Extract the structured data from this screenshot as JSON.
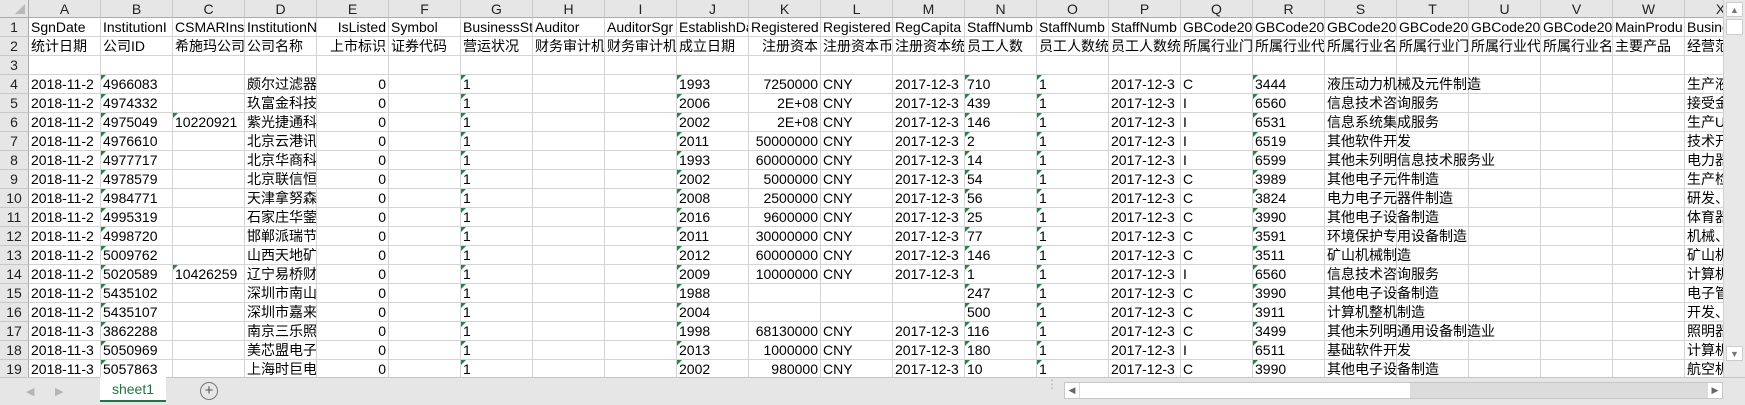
{
  "columns": [
    "A",
    "B",
    "C",
    "D",
    "E",
    "F",
    "G",
    "H",
    "I",
    "J",
    "K",
    "L",
    "M",
    "N",
    "O",
    "P",
    "Q",
    "R",
    "S",
    "T",
    "U",
    "V",
    "W",
    "X"
  ],
  "right_aligned_columns": [
    "E",
    "K"
  ],
  "error_indicator_color": "#1e8a3a",
  "rows": [
    {
      "num": "1",
      "cells": [
        "SgnDate",
        "InstitutionI",
        "CSMARInst",
        "InstitutionN",
        "IsListed",
        "Symbol",
        "BusinessSta",
        "Auditor",
        "AuditorSgr",
        "EstablishDa",
        "Registered",
        "Registered",
        "RegCapita",
        "StaffNumb",
        "StaffNumb",
        "StaffNumb",
        "GBCode20",
        "GBCode20",
        "GBCode20",
        "GBCode20",
        "GBCode20",
        "GBCode20",
        "MainProdu",
        "Busine"
      ],
      "flags": []
    },
    {
      "num": "2",
      "cells": [
        "统计日期",
        "公司ID",
        "希施玛公司",
        "公司名称",
        "上市标识",
        "证券代码",
        "营运状况",
        "财务审计机",
        "财务审计机",
        "成立日期",
        "注册资本",
        "注册资本币",
        "注册资本统",
        "员工人数",
        "员工人数统",
        "员工人数统",
        "所属行业门",
        "所属行业代",
        "所属行业名",
        "所属行业门",
        "所属行业代",
        "所属行业名",
        "主要产品",
        "经营范"
      ],
      "flags": []
    },
    {
      "num": "3",
      "cells": [
        "",
        "",
        "",
        "",
        "",
        "",
        "",
        "",
        "",
        "",
        "",
        "",
        "",
        "",
        "",
        "",
        "",
        "",
        "",
        "",
        "",
        "",
        "",
        ""
      ],
      "flags": []
    },
    {
      "num": "4",
      "cells": [
        "2018-11-2",
        "4966083",
        "",
        "颇尔过滤器",
        "0",
        "",
        "1",
        "",
        "",
        "1993",
        "7250000",
        "CNY",
        "2017-12-3",
        "710",
        "1",
        "2017-12-3",
        "C",
        "3444",
        "液压动力机械及元件制造",
        "",
        "",
        "",
        "",
        "生产液"
      ],
      "flags": [
        "B",
        "G",
        "J",
        "N",
        "O",
        "R"
      ]
    },
    {
      "num": "5",
      "cells": [
        "2018-11-2",
        "4974332",
        "",
        "玖富金科技",
        "0",
        "",
        "1",
        "",
        "",
        "2006",
        "2E+08",
        "CNY",
        "2017-12-3",
        "439",
        "1",
        "2017-12-3",
        "I",
        "6560",
        "信息技术咨询服务",
        "",
        "",
        "",
        "",
        "接受金"
      ],
      "flags": [
        "B",
        "G",
        "J",
        "N",
        "O",
        "R"
      ]
    },
    {
      "num": "6",
      "cells": [
        "2018-11-2",
        "4975049",
        "10220921",
        "紫光捷通科",
        "0",
        "",
        "1",
        "",
        "",
        "2002",
        "2E+08",
        "CNY",
        "2017-12-3",
        "146",
        "1",
        "2017-12-3",
        "I",
        "6531",
        "信息系统集成服务",
        "",
        "",
        "",
        "",
        "生产U"
      ],
      "flags": [
        "B",
        "C",
        "G",
        "J",
        "N",
        "O",
        "R"
      ]
    },
    {
      "num": "7",
      "cells": [
        "2018-11-2",
        "4976610",
        "",
        "北京云港讯",
        "0",
        "",
        "1",
        "",
        "",
        "2011",
        "50000000",
        "CNY",
        "2017-12-3",
        "2",
        "1",
        "2017-12-3",
        "I",
        "6519",
        "其他软件开发",
        "",
        "",
        "",
        "",
        "技术开"
      ],
      "flags": [
        "B",
        "G",
        "J",
        "N",
        "O",
        "R"
      ]
    },
    {
      "num": "8",
      "cells": [
        "2018-11-2",
        "4977717",
        "",
        "北京华商科",
        "0",
        "",
        "1",
        "",
        "",
        "1993",
        "60000000",
        "CNY",
        "2017-12-3",
        "14",
        "1",
        "2017-12-3",
        "I",
        "6599",
        "其他未列明信息技术服务业",
        "",
        "",
        "",
        "",
        "电力器"
      ],
      "flags": [
        "B",
        "G",
        "J",
        "N",
        "O",
        "R"
      ]
    },
    {
      "num": "9",
      "cells": [
        "2018-11-2",
        "4978579",
        "",
        "北京联信恒",
        "0",
        "",
        "1",
        "",
        "",
        "2002",
        "5000000",
        "CNY",
        "2017-12-3",
        "54",
        "1",
        "2017-12-3",
        "C",
        "3989",
        "其他电子元件制造",
        "",
        "",
        "",
        "",
        "生产检"
      ],
      "flags": [
        "B",
        "G",
        "J",
        "N",
        "O",
        "R"
      ]
    },
    {
      "num": "10",
      "cells": [
        "2018-11-2",
        "4984771",
        "",
        "天津拿努森",
        "0",
        "",
        "1",
        "",
        "",
        "2008",
        "2500000",
        "CNY",
        "2017-12-3",
        "56",
        "1",
        "2017-12-3",
        "C",
        "3824",
        "电力电子元器件制造",
        "",
        "",
        "",
        "",
        "研发、"
      ],
      "flags": [
        "B",
        "G",
        "J",
        "N",
        "O",
        "R"
      ]
    },
    {
      "num": "11",
      "cells": [
        "2018-11-2",
        "4995319",
        "",
        "石家庄华蓥",
        "0",
        "",
        "1",
        "",
        "",
        "2016",
        "9600000",
        "CNY",
        "2017-12-3",
        "25",
        "1",
        "2017-12-3",
        "C",
        "3990",
        "其他电子设备制造",
        "",
        "",
        "",
        "",
        "体育器"
      ],
      "flags": [
        "B",
        "G",
        "J",
        "N",
        "O",
        "R"
      ]
    },
    {
      "num": "12",
      "cells": [
        "2018-11-2",
        "4998720",
        "",
        "邯郸派瑞节",
        "0",
        "",
        "1",
        "",
        "",
        "2011",
        "30000000",
        "CNY",
        "2017-12-3",
        "77",
        "1",
        "2017-12-3",
        "C",
        "3591",
        "环境保护专用设备制造",
        "",
        "",
        "",
        "",
        "机械、"
      ],
      "flags": [
        "B",
        "G",
        "J",
        "N",
        "O",
        "R"
      ]
    },
    {
      "num": "13",
      "cells": [
        "2018-11-2",
        "5009762",
        "",
        "山西天地矿",
        "0",
        "",
        "1",
        "",
        "",
        "2012",
        "60000000",
        "CNY",
        "2017-12-3",
        "146",
        "1",
        "2017-12-3",
        "C",
        "3511",
        "矿山机械制造",
        "",
        "",
        "",
        "",
        "矿山机"
      ],
      "flags": [
        "B",
        "G",
        "J",
        "N",
        "O",
        "R"
      ]
    },
    {
      "num": "14",
      "cells": [
        "2018-11-2",
        "5020589",
        "10426259",
        "辽宁易桥财",
        "0",
        "",
        "1",
        "",
        "",
        "2009",
        "10000000",
        "CNY",
        "2017-12-3",
        "1",
        "1",
        "2017-12-3",
        "I",
        "6560",
        "信息技术咨询服务",
        "",
        "",
        "",
        "",
        "计算机"
      ],
      "flags": [
        "B",
        "C",
        "G",
        "J",
        "N",
        "O",
        "R"
      ]
    },
    {
      "num": "15",
      "cells": [
        "2018-11-2",
        "5435102",
        "",
        "深圳市南山",
        "0",
        "",
        "1",
        "",
        "",
        "1988",
        "",
        "",
        "",
        "247",
        "1",
        "2017-12-3",
        "C",
        "3990",
        "其他电子设备制造",
        "",
        "",
        "",
        "",
        "电子管"
      ],
      "flags": [
        "B",
        "G",
        "J",
        "N",
        "O",
        "R"
      ]
    },
    {
      "num": "16",
      "cells": [
        "2018-11-2",
        "5435107",
        "",
        "深圳市嘉来",
        "0",
        "",
        "1",
        "",
        "",
        "2004",
        "",
        "",
        "",
        "500",
        "1",
        "2017-12-3",
        "C",
        "3911",
        "计算机整机制造",
        "",
        "",
        "",
        "",
        "开发、"
      ],
      "flags": [
        "B",
        "G",
        "J",
        "N",
        "O",
        "R"
      ]
    },
    {
      "num": "17",
      "cells": [
        "2018-11-3",
        "3862288",
        "",
        "南京三乐照",
        "0",
        "",
        "1",
        "",
        "",
        "1998",
        "68130000",
        "CNY",
        "2017-12-3",
        "116",
        "1",
        "2017-12-3",
        "C",
        "3499",
        "其他未列明通用设备制造业",
        "",
        "",
        "",
        "",
        "照明器"
      ],
      "flags": [
        "B",
        "G",
        "J",
        "N",
        "O",
        "R"
      ]
    },
    {
      "num": "18",
      "cells": [
        "2018-11-3",
        "5050969",
        "",
        "美芯盟电子",
        "0",
        "",
        "1",
        "",
        "",
        "2013",
        "1000000",
        "CNY",
        "2017-12-3",
        "180",
        "1",
        "2017-12-3",
        "I",
        "6511",
        "基础软件开发",
        "",
        "",
        "",
        "",
        "计算机"
      ],
      "flags": [
        "B",
        "G",
        "J",
        "N",
        "O",
        "R"
      ]
    },
    {
      "num": "19",
      "cells": [
        "2018-11-3",
        "5057863",
        "",
        "上海时巨电",
        "0",
        "",
        "1",
        "",
        "",
        "2002",
        "980000",
        "CNY",
        "2017-12-3",
        "10",
        "1",
        "2017-12-3",
        "C",
        "3990",
        "其他电子设备制造",
        "",
        "",
        "",
        "",
        "航空机"
      ],
      "flags": [
        "B",
        "G",
        "J",
        "N",
        "O",
        "R"
      ]
    }
  ],
  "tabs": {
    "sheet1": "sheet1",
    "add": "+"
  },
  "icons": {
    "prev": "◀",
    "next": "▶",
    "scroll_left": "◀",
    "scroll_right": "▶",
    "scroll_up": "▲",
    "scroll_down": "▼",
    "split": "⋮"
  }
}
